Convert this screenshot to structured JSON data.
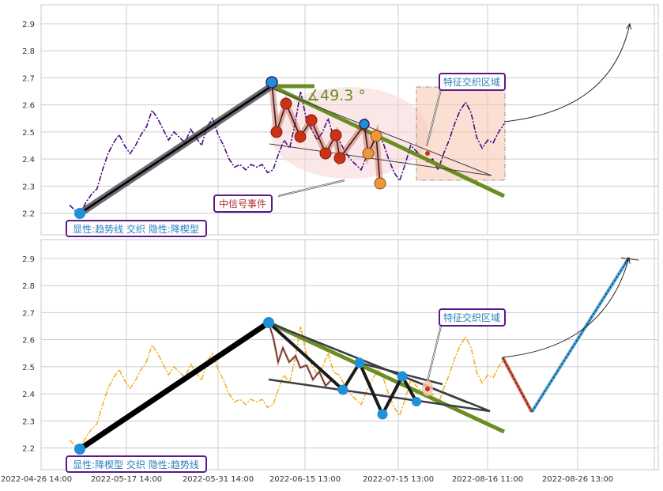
{
  "colors": {
    "frame": "#c8c8c8",
    "grid": "#cccccc",
    "price_top": "#4b0a86",
    "price_bottom": "#f0b429",
    "trend_dark": "#3c3c46",
    "trend_green": "#6b8e23",
    "wave_red": "#c83216",
    "wave_orange": "#f0963c",
    "pivot_blue": "#1e90d6",
    "label_border": "#5a1a8c",
    "label_text_blue": "#2a7fbf",
    "label_text_red": "#b03030",
    "zone_fill": "#f9c5b0",
    "ellipse_fill": "#f6d6d6"
  },
  "labels": {
    "top_left_box": "显性:趋势线 交织 隐性:降楔型",
    "bottom_left_box": "显性:降楔型 交织 隐性:趋势线",
    "zone_top": "特征交织区域",
    "zone_bottom": "特征交织区域",
    "event": "中信号事件",
    "angle": "∡49.3 °"
  },
  "chart_data": [
    {
      "type": "line",
      "panel": "top",
      "ylim": [
        2.12,
        2.97
      ],
      "yticks": [
        "2.2",
        "2.3",
        "2.4",
        "2.5",
        "2.6",
        "2.7",
        "2.8",
        "2.9"
      ],
      "series": [
        {
          "style": "dash-dot",
          "values": [
            2.23,
            2.21,
            2.2,
            2.24,
            2.27,
            2.29,
            2.36,
            2.42,
            2.46,
            2.49,
            2.45,
            2.42,
            2.45,
            2.49,
            2.52,
            2.58,
            2.55,
            2.51,
            2.47,
            2.5,
            2.48,
            2.46,
            2.51,
            2.48,
            2.45,
            2.52,
            2.55,
            2.49,
            2.45,
            2.4,
            2.37,
            2.38,
            2.36,
            2.38,
            2.37,
            2.38,
            2.35,
            2.36,
            2.42,
            2.47,
            2.44,
            2.53,
            2.65,
            2.55,
            2.51,
            2.47,
            2.5,
            2.55,
            2.48,
            2.47,
            2.43,
            2.4,
            2.38,
            2.36,
            2.41,
            2.45,
            2.49,
            2.46,
            2.4,
            2.35,
            2.32,
            2.38,
            2.45,
            2.43,
            2.41,
            2.39,
            2.4,
            2.36,
            2.42,
            2.47,
            2.53,
            2.58,
            2.61,
            2.57,
            2.48,
            2.44,
            2.47,
            2.46,
            2.5,
            2.53
          ]
        }
      ]
    },
    {
      "type": "line",
      "panel": "bottom",
      "ylim": [
        2.12,
        2.97
      ],
      "yticks": [
        "2.2",
        "2.3",
        "2.4",
        "2.5",
        "2.6",
        "2.7",
        "2.8",
        "2.9"
      ],
      "xticks": [
        "2022-04-26 14:00",
        "2022-05-17 14:00",
        "2022-05-31 14:00",
        "2022-06-15 13:00",
        "2022-07-15 13:00",
        "2022-08-16 11:00",
        "2022-08-26 13:00"
      ],
      "series": [
        {
          "style": "dash-dot",
          "values": [
            2.23,
            2.21,
            2.2,
            2.24,
            2.27,
            2.29,
            2.36,
            2.42,
            2.46,
            2.49,
            2.45,
            2.42,
            2.45,
            2.49,
            2.52,
            2.58,
            2.55,
            2.51,
            2.47,
            2.5,
            2.48,
            2.46,
            2.51,
            2.48,
            2.45,
            2.52,
            2.55,
            2.49,
            2.45,
            2.4,
            2.37,
            2.38,
            2.36,
            2.38,
            2.37,
            2.38,
            2.35,
            2.36,
            2.42,
            2.47,
            2.44,
            2.53,
            2.65,
            2.55,
            2.51,
            2.47,
            2.5,
            2.55,
            2.48,
            2.47,
            2.43,
            2.4,
            2.38,
            2.36,
            2.41,
            2.45,
            2.49,
            2.46,
            2.4,
            2.35,
            2.32,
            2.38,
            2.45,
            2.43,
            2.41,
            2.39,
            2.4,
            2.36,
            2.42,
            2.47,
            2.53,
            2.58,
            2.61,
            2.57,
            2.48,
            2.44,
            2.47,
            2.46,
            2.5,
            2.53
          ]
        }
      ]
    }
  ]
}
